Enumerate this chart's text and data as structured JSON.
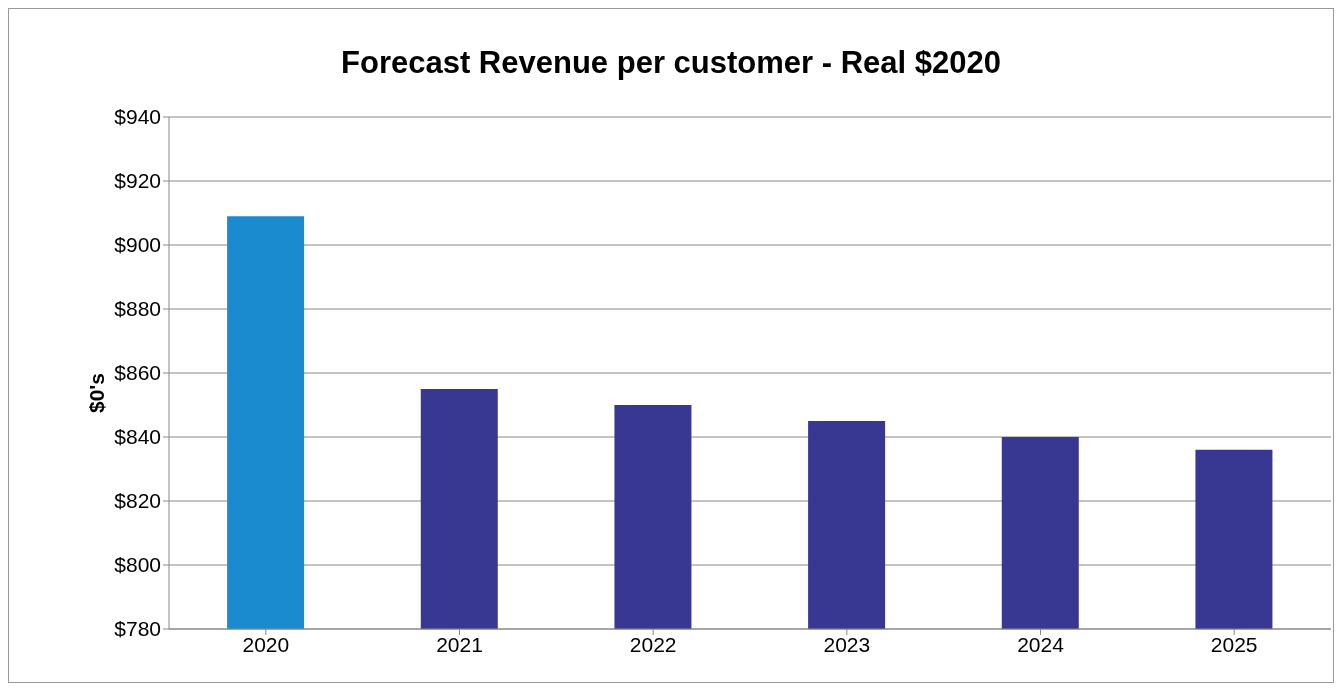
{
  "chart_data": {
    "type": "bar",
    "title": "Forecast Revenue per customer - Real $2020",
    "ylabel": "$0's",
    "categories": [
      "2020",
      "2021",
      "2022",
      "2023",
      "2024",
      "2025"
    ],
    "values": [
      909,
      855,
      850,
      845,
      840,
      836
    ],
    "colors": [
      "#1b8bd0",
      "#383893",
      "#383893",
      "#383893",
      "#383893",
      "#383893"
    ],
    "ylim": [
      780,
      940
    ],
    "yticks": [
      {
        "value": 780,
        "label": "$780"
      },
      {
        "value": 800,
        "label": "$800"
      },
      {
        "value": 820,
        "label": "$820"
      },
      {
        "value": 840,
        "label": "$840"
      },
      {
        "value": 860,
        "label": "$860"
      },
      {
        "value": 880,
        "label": "$880"
      },
      {
        "value": 900,
        "label": "$900"
      },
      {
        "value": 920,
        "label": "$920"
      },
      {
        "value": 940,
        "label": "$940"
      }
    ],
    "grid": "y",
    "legend": false
  }
}
